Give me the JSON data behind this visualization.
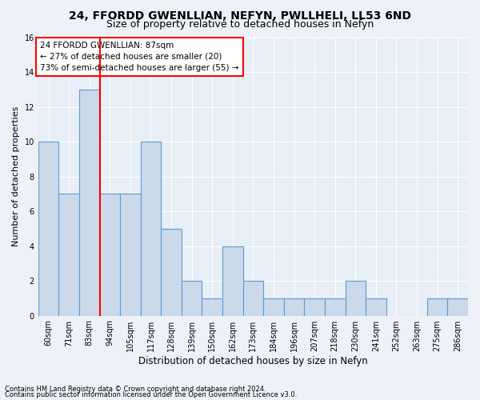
{
  "title1": "24, FFORDD GWENLLIAN, NEFYN, PWLLHELI, LL53 6ND",
  "title2": "Size of property relative to detached houses in Nefyn",
  "xlabel": "Distribution of detached houses by size in Nefyn",
  "ylabel": "Number of detached properties",
  "categories": [
    "60sqm",
    "71sqm",
    "83sqm",
    "94sqm",
    "105sqm",
    "117sqm",
    "128sqm",
    "139sqm",
    "150sqm",
    "162sqm",
    "173sqm",
    "184sqm",
    "196sqm",
    "207sqm",
    "218sqm",
    "230sqm",
    "241sqm",
    "252sqm",
    "263sqm",
    "275sqm",
    "286sqm"
  ],
  "values": [
    10,
    7,
    13,
    7,
    7,
    10,
    5,
    2,
    1,
    4,
    2,
    1,
    1,
    1,
    1,
    2,
    1,
    0,
    0,
    1,
    1
  ],
  "bar_color": "#ccd9ea",
  "bar_edge_color": "#5b9bd5",
  "red_line_index": 2,
  "ylim": [
    0,
    16
  ],
  "yticks": [
    0,
    2,
    4,
    6,
    8,
    10,
    12,
    14,
    16
  ],
  "annotation_text": "24 FFORDD GWENLLIAN: 87sqm\n← 27% of detached houses are smaller (20)\n73% of semi-detached houses are larger (55) →",
  "footer1": "Contains HM Land Registry data © Crown copyright and database right 2024.",
  "footer2": "Contains public sector information licensed under the Open Government Licence v3.0.",
  "bg_color": "#eef2f8",
  "plot_bg_color": "#e8eef6",
  "grid_color": "#ffffff",
  "title1_fontsize": 10,
  "title2_fontsize": 9,
  "ylabel_fontsize": 8,
  "xlabel_fontsize": 8.5,
  "tick_fontsize": 7,
  "annotation_fontsize": 7.5,
  "footer_fontsize": 6
}
